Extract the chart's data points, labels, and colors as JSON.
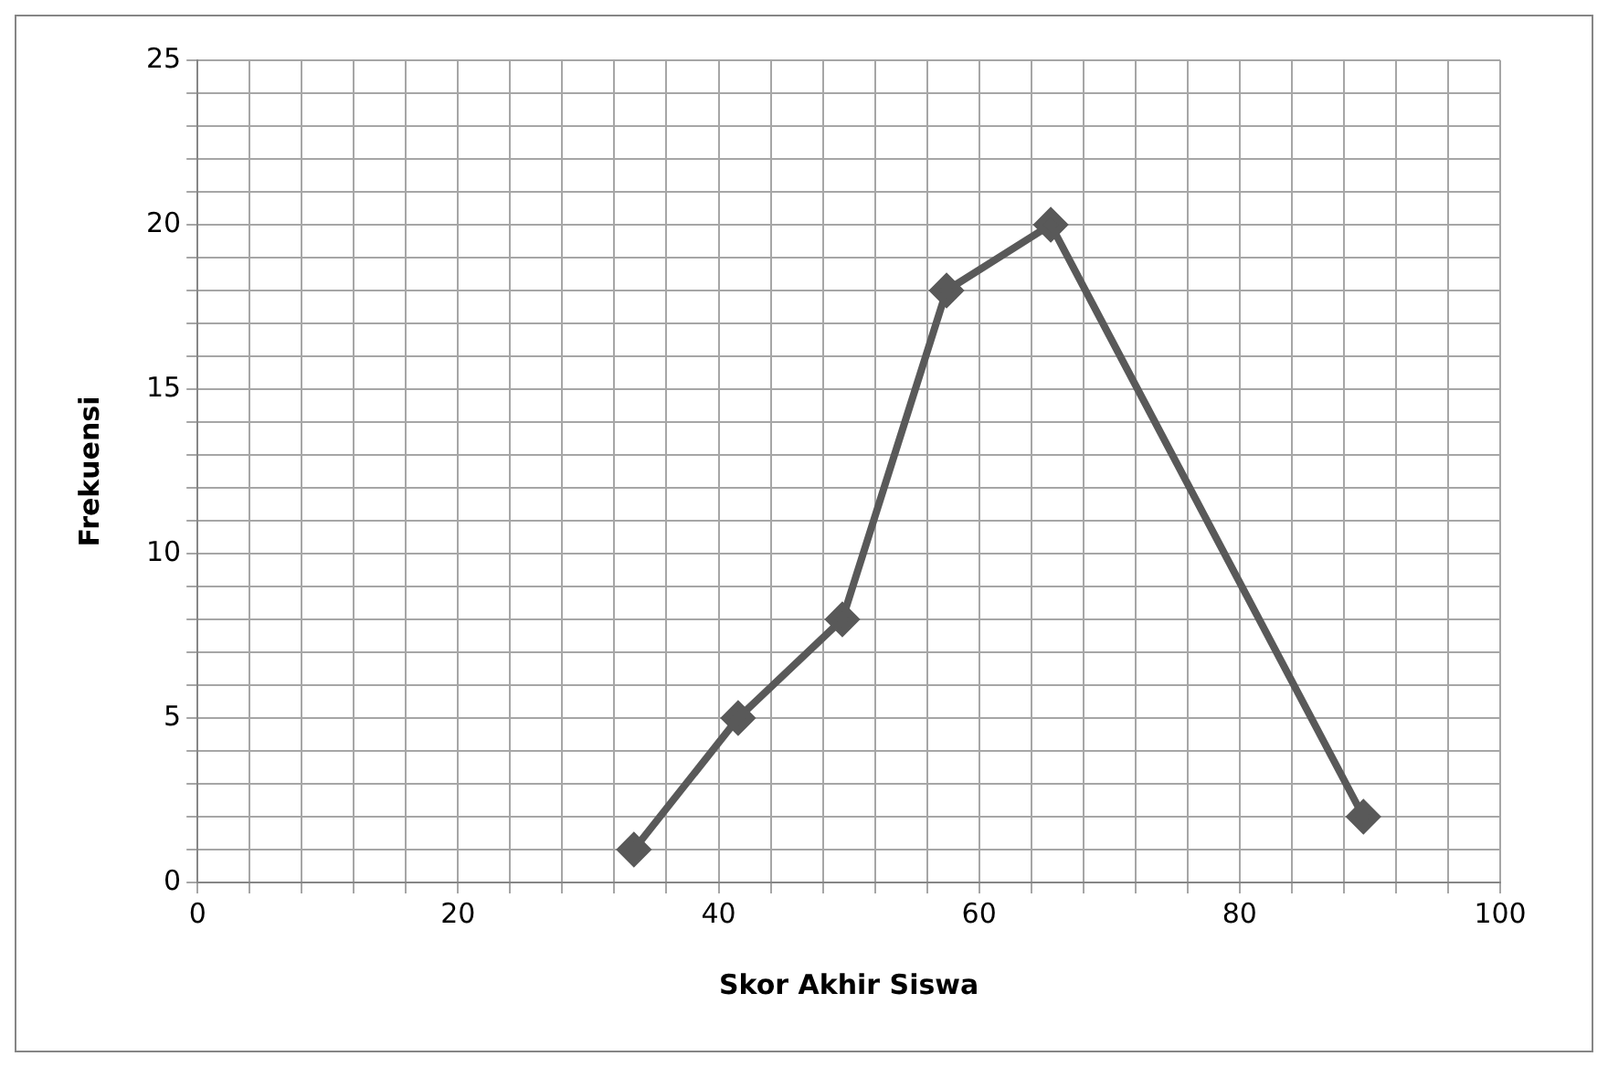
{
  "chart_data": {
    "type": "line",
    "xlabel": "Skor Akhir Siswa",
    "ylabel": "Frekuensi",
    "x": [
      33.5,
      41.5,
      49.5,
      57.5,
      65.5,
      89.5
    ],
    "series": [
      {
        "color": "#595959",
        "values": [
          1,
          5,
          8,
          18,
          20,
          2
        ]
      }
    ],
    "xlim": [
      0,
      100
    ],
    "xticks": [
      0,
      {
        "value": 4,
        "label": null
      },
      {
        "value": 8,
        "label": null
      },
      {
        "value": 12,
        "label": null
      },
      {
        "value": 16,
        "label": null
      },
      20,
      {
        "value": 24,
        "label": null
      },
      {
        "value": 28,
        "label": null
      },
      {
        "value": 32,
        "label": null
      },
      {
        "value": 36,
        "label": null
      },
      40,
      {
        "value": 44,
        "label": null
      },
      {
        "value": 48,
        "label": null
      },
      {
        "value": 52,
        "label": null
      },
      {
        "value": 56,
        "label": null
      },
      60,
      {
        "value": 64,
        "label": null
      },
      {
        "value": 68,
        "label": null
      },
      {
        "value": 72,
        "label": null
      },
      {
        "value": 76,
        "label": null
      },
      80,
      {
        "value": 84,
        "label": null
      },
      {
        "value": 88,
        "label": null
      },
      {
        "value": 92,
        "label": null
      },
      {
        "value": 96,
        "label": null
      },
      100
    ],
    "ylim": [
      0,
      25
    ],
    "yticks": [
      0,
      {
        "value": 1,
        "label": null
      },
      {
        "value": 2,
        "label": null
      },
      {
        "value": 3,
        "label": null
      },
      {
        "value": 4,
        "label": null
      },
      5,
      {
        "value": 6,
        "label": null
      },
      {
        "value": 7,
        "label": null
      },
      {
        "value": 8,
        "label": null
      },
      {
        "value": 9,
        "label": null
      },
      10,
      {
        "value": 11,
        "label": null
      },
      {
        "value": 12,
        "label": null
      },
      {
        "value": 13,
        "label": null
      },
      {
        "value": 14,
        "label": null
      },
      15,
      {
        "value": 16,
        "label": null
      },
      {
        "value": 17,
        "label": null
      },
      {
        "value": 18,
        "label": null
      },
      {
        "value": 19,
        "label": null
      },
      20,
      {
        "value": 21,
        "label": null
      },
      {
        "value": 22,
        "label": null
      },
      {
        "value": 23,
        "label": null
      },
      {
        "value": 24,
        "label": null
      },
      25
    ],
    "grid": true,
    "legend": false,
    "marker": "diamond",
    "line_style": "solid"
  }
}
